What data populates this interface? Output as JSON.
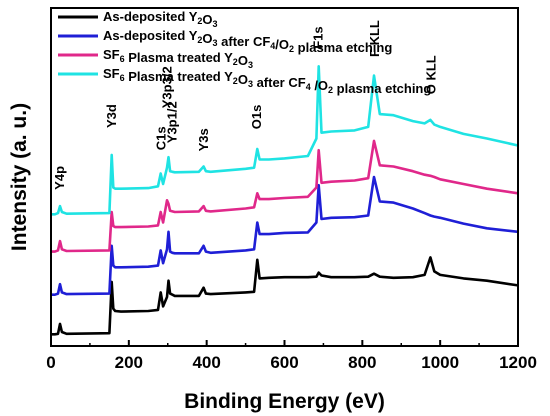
{
  "chart_data": {
    "type": "line",
    "xlabel": "Binding Energy (eV)",
    "ylabel": "Intensity (a. u.)",
    "xlim": [
      0,
      1200
    ],
    "xticks": [
      0,
      200,
      400,
      600,
      800,
      1000,
      1200
    ],
    "yticks_shown": false,
    "grid": false,
    "legend_position": "top-left",
    "series": [
      {
        "name": "As-deposited Y2O3",
        "legend_parts": [
          {
            "t": "As-deposited Y"
          },
          {
            "t": "2",
            "sub": true
          },
          {
            "t": "O"
          },
          {
            "t": "3",
            "sub": true
          }
        ],
        "color": "#000000",
        "x": [
          0,
          10,
          18,
          23,
          28,
          40,
          150,
          156,
          160,
          165,
          180,
          250,
          275,
          282,
          288,
          298,
          302,
          306,
          312,
          318,
          380,
          392,
          398,
          410,
          500,
          522,
          530,
          536,
          560,
          600,
          660,
          682,
          688,
          695,
          720,
          780,
          815,
          830,
          845,
          880,
          930,
          960,
          975,
          985,
          1000,
          1060,
          1120,
          1200
        ],
        "y": [
          1.0,
          1.0,
          1.05,
          1.9,
          1.2,
          1.05,
          1.1,
          5.5,
          3.2,
          3.0,
          2.95,
          3.0,
          3.1,
          4.6,
          3.4,
          4.2,
          5.6,
          4.5,
          4.4,
          4.3,
          4.3,
          5.0,
          4.5,
          4.45,
          4.6,
          4.65,
          7.4,
          5.8,
          5.85,
          5.9,
          5.9,
          5.95,
          6.3,
          6.05,
          5.9,
          5.9,
          5.95,
          6.2,
          5.95,
          5.85,
          5.9,
          6.1,
          7.6,
          6.4,
          6.1,
          5.8,
          5.6,
          5.2
        ]
      },
      {
        "name": "As-deposited Y2O3 after CF4/O2 plasma etching",
        "legend_parts": [
          {
            "t": "As-deposited Y"
          },
          {
            "t": "2",
            "sub": true
          },
          {
            "t": "O"
          },
          {
            "t": "3",
            "sub": true
          },
          {
            "t": " after CF"
          },
          {
            "t": "4",
            "sub": true
          },
          {
            "t": "/O"
          },
          {
            "t": "2",
            "sub": true
          },
          {
            "t": " plasma etching"
          }
        ],
        "color": "#1f1fd6",
        "x": [
          0,
          10,
          18,
          23,
          28,
          40,
          150,
          156,
          160,
          165,
          180,
          250,
          275,
          282,
          288,
          298,
          302,
          306,
          312,
          318,
          380,
          392,
          398,
          410,
          500,
          522,
          530,
          536,
          560,
          600,
          660,
          682,
          688,
          695,
          720,
          780,
          815,
          830,
          845,
          880,
          930,
          960,
          975,
          985,
          1000,
          1060,
          1120,
          1200
        ],
        "y": [
          4.4,
          4.4,
          4.5,
          5.3,
          4.6,
          4.45,
          4.5,
          8.6,
          6.9,
          6.75,
          6.75,
          6.8,
          6.9,
          8.2,
          7.1,
          8.3,
          9.8,
          8.1,
          8.0,
          7.95,
          7.95,
          8.6,
          8.1,
          8.0,
          8.2,
          8.3,
          10.6,
          9.6,
          9.6,
          9.7,
          9.75,
          10.6,
          13.8,
          10.9,
          11.0,
          11.05,
          11.2,
          14.5,
          12.4,
          12.3,
          11.8,
          11.4,
          11.2,
          11.1,
          11.0,
          10.5,
          10.1,
          9.8
        ]
      },
      {
        "name": "SF6 Plasma treated Y2O3",
        "legend_parts": [
          {
            "t": "SF"
          },
          {
            "t": "6",
            "sub": true
          },
          {
            "t": " Plasma treated Y"
          },
          {
            "t": "2",
            "sub": true
          },
          {
            "t": "O"
          },
          {
            "t": "3",
            "sub": true
          }
        ],
        "color": "#e0288a",
        "x": [
          0,
          10,
          18,
          23,
          28,
          40,
          150,
          156,
          160,
          165,
          180,
          250,
          275,
          282,
          288,
          298,
          302,
          306,
          312,
          318,
          380,
          392,
          398,
          410,
          500,
          522,
          530,
          536,
          560,
          600,
          660,
          682,
          688,
          695,
          720,
          780,
          815,
          830,
          845,
          880,
          930,
          960,
          975,
          985,
          1000,
          1060,
          1120,
          1200
        ],
        "y": [
          8.1,
          8.1,
          8.2,
          9.0,
          8.3,
          8.15,
          8.2,
          11.5,
          10.3,
          10.2,
          10.2,
          10.25,
          10.35,
          11.5,
          10.6,
          12.5,
          12.2,
          11.6,
          11.55,
          11.5,
          11.55,
          12.0,
          11.6,
          11.55,
          11.8,
          11.9,
          13.1,
          12.6,
          12.6,
          12.7,
          12.8,
          13.6,
          16.8,
          14.0,
          14.1,
          14.2,
          14.4,
          17.6,
          15.5,
          15.4,
          15.0,
          14.7,
          14.6,
          14.5,
          14.3,
          13.9,
          13.5,
          13.1
        ]
      },
      {
        "name": "SF6 Plasma treated Y2O3 after CF4 /O2 plasma etching",
        "legend_parts": [
          {
            "t": "SF"
          },
          {
            "t": "6",
            "sub": true
          },
          {
            "t": " Plasma treated Y"
          },
          {
            "t": "2",
            "sub": true
          },
          {
            "t": "O"
          },
          {
            "t": "3",
            "sub": true
          },
          {
            "t": " after CF"
          },
          {
            "t": "4",
            "sub": true
          },
          {
            "t": " /O"
          },
          {
            "t": "2",
            "sub": true
          },
          {
            "t": " plasma etching"
          }
        ],
        "color": "#1fe3e3",
        "x": [
          0,
          10,
          18,
          23,
          28,
          40,
          150,
          156,
          160,
          165,
          180,
          250,
          275,
          282,
          288,
          298,
          302,
          306,
          312,
          318,
          380,
          392,
          398,
          410,
          500,
          522,
          530,
          536,
          560,
          600,
          660,
          682,
          688,
          695,
          720,
          780,
          815,
          830,
          845,
          880,
          930,
          960,
          975,
          985,
          1000,
          1060,
          1120,
          1200
        ],
        "y": [
          11.3,
          11.3,
          11.4,
          12.0,
          11.5,
          11.35,
          11.4,
          16.4,
          13.6,
          13.5,
          13.5,
          13.55,
          13.7,
          14.8,
          13.9,
          15.3,
          16.2,
          15.0,
          14.95,
          14.9,
          14.95,
          15.4,
          15.0,
          14.95,
          15.2,
          15.3,
          16.9,
          16.0,
          16.0,
          16.1,
          16.3,
          17.8,
          24.0,
          18.3,
          18.4,
          18.5,
          18.8,
          23.2,
          19.9,
          19.8,
          19.3,
          19.1,
          19.4,
          19.0,
          18.8,
          18.2,
          17.8,
          17.2
        ]
      }
    ],
    "peak_labels": [
      {
        "text": "Y4p",
        "x": 23,
        "y": 13.4
      },
      {
        "text": "Y3d",
        "x": 157,
        "y": 18.7
      },
      {
        "text": "C1s",
        "x": 284,
        "y": 16.8
      },
      {
        "text": "Y3p3/2",
        "x": 300,
        "y": 20.4
      },
      {
        "text": "Y3p1/2",
        "x": 312,
        "y": 17.4
      },
      {
        "text": "Y3s",
        "x": 393,
        "y": 16.7
      },
      {
        "text": "O1s",
        "x": 530,
        "y": 18.6
      },
      {
        "text": "F1s",
        "x": 688,
        "y": 25.5
      },
      {
        "text": "F KLL",
        "x": 832,
        "y": 24.8
      },
      {
        "text": "O KLL",
        "x": 978,
        "y": 21.6
      }
    ],
    "yrange": [
      0,
      29
    ]
  }
}
